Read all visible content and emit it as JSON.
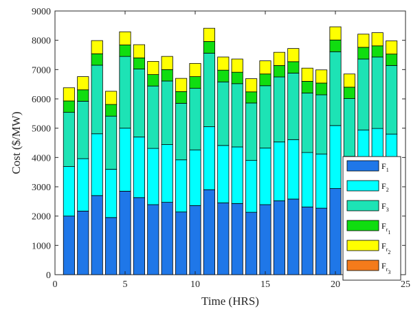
{
  "chart_data": {
    "type": "bar",
    "stacked": true,
    "xlabel": "Time (HRS)",
    "ylabel": "Cost ($/MW)",
    "xlim": [
      0,
      25
    ],
    "ylim": [
      0,
      9000
    ],
    "xticks": [
      0,
      5,
      10,
      15,
      20,
      25
    ],
    "yticks": [
      0,
      1000,
      2000,
      3000,
      4000,
      5000,
      6000,
      7000,
      8000,
      9000
    ],
    "grid": false,
    "legend_position": "right",
    "x": [
      1,
      2,
      3,
      4,
      5,
      6,
      7,
      8,
      9,
      10,
      11,
      12,
      13,
      14,
      15,
      16,
      17,
      18,
      19,
      20,
      21,
      22,
      23,
      24
    ],
    "series": [
      {
        "name": "F1",
        "main": "F",
        "sub": "1",
        "subsub": "",
        "color": "#1f77e8",
        "values": [
          2000,
          2170,
          2700,
          1950,
          2850,
          2630,
          2390,
          2470,
          2140,
          2360,
          2900,
          2450,
          2430,
          2130,
          2390,
          2520,
          2580,
          2310,
          2270,
          2940,
          2250,
          2940,
          2990,
          2860
        ]
      },
      {
        "name": "F2",
        "main": "F",
        "sub": "2",
        "subsub": "",
        "color": "#00ffff",
        "values": [
          1690,
          1790,
          2110,
          1650,
          2150,
          2070,
          1920,
          1970,
          1780,
          1900,
          2150,
          1960,
          1930,
          1770,
          1930,
          2010,
          2030,
          1860,
          1850,
          2150,
          1790,
          2000,
          2000,
          1940
        ]
      },
      {
        "name": "F3",
        "main": "F",
        "sub": "3",
        "subsub": "",
        "color": "#1de3b5",
        "values": [
          1850,
          1960,
          2340,
          1810,
          2450,
          2320,
          2130,
          2170,
          1930,
          2100,
          2510,
          2170,
          2160,
          1960,
          2130,
          2220,
          2270,
          2030,
          2020,
          2520,
          1970,
          2420,
          2440,
          2340
        ]
      },
      {
        "name": "Fr1",
        "main": "F",
        "sub": "r",
        "subsub": "1",
        "color": "#10dd10",
        "values": [
          390,
          390,
          390,
          400,
          390,
          380,
          390,
          390,
          400,
          400,
          400,
          400,
          390,
          380,
          400,
          390,
          390,
          400,
          400,
          400,
          390,
          400,
          380,
          390
        ]
      },
      {
        "name": "Fr2",
        "main": "F",
        "sub": "r",
        "subsub": "2",
        "color": "#ffff00",
        "values": [
          450,
          450,
          450,
          450,
          450,
          450,
          450,
          450,
          450,
          450,
          450,
          450,
          450,
          450,
          450,
          450,
          450,
          450,
          450,
          450,
          450,
          450,
          450,
          450
        ]
      },
      {
        "name": "Fr3",
        "main": "F",
        "sub": "r",
        "subsub": "3",
        "color": "#f47b1b",
        "values": [
          0,
          0,
          0,
          0,
          0,
          0,
          0,
          0,
          0,
          0,
          0,
          0,
          0,
          0,
          0,
          0,
          0,
          0,
          0,
          0,
          0,
          0,
          0,
          0
        ]
      }
    ]
  }
}
